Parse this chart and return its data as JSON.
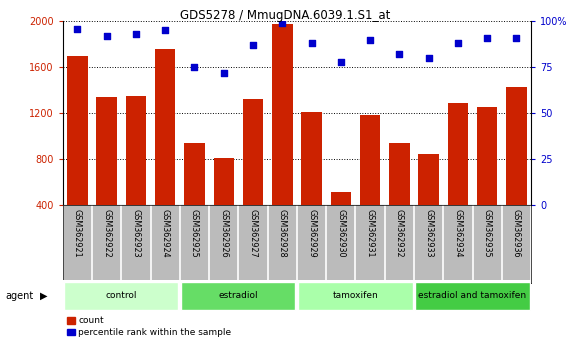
{
  "title": "GDS5278 / MmugDNA.6039.1.S1_at",
  "samples": [
    "GSM362921",
    "GSM362922",
    "GSM362923",
    "GSM362924",
    "GSM362925",
    "GSM362926",
    "GSM362927",
    "GSM362928",
    "GSM362929",
    "GSM362930",
    "GSM362931",
    "GSM362932",
    "GSM362933",
    "GSM362934",
    "GSM362935",
    "GSM362936"
  ],
  "counts": [
    1700,
    1340,
    1350,
    1760,
    940,
    810,
    1320,
    1980,
    1210,
    520,
    1185,
    940,
    850,
    1290,
    1255,
    1430
  ],
  "percentiles": [
    96,
    92,
    93,
    95,
    75,
    72,
    87,
    99,
    88,
    78,
    90,
    82,
    80,
    88,
    91,
    91
  ],
  "groups": [
    {
      "label": "control",
      "start": 0,
      "end": 4,
      "color": "#ccffcc"
    },
    {
      "label": "estradiol",
      "start": 4,
      "end": 8,
      "color": "#66dd66"
    },
    {
      "label": "tamoxifen",
      "start": 8,
      "end": 12,
      "color": "#aaffaa"
    },
    {
      "label": "estradiol and tamoxifen",
      "start": 12,
      "end": 16,
      "color": "#44cc44"
    }
  ],
  "bar_color": "#cc2200",
  "dot_color": "#0000cc",
  "ylim_left": [
    400,
    2000
  ],
  "ylim_right": [
    0,
    100
  ],
  "yticks_left": [
    400,
    800,
    1200,
    1600,
    2000
  ],
  "yticks_right": [
    0,
    25,
    50,
    75,
    100
  ],
  "grid_color": "#000000",
  "background_color": "#ffffff",
  "tick_label_area_color": "#bbbbbb",
  "agent_label": "agent",
  "legend_count_label": "count",
  "legend_percentile_label": "percentile rank within the sample"
}
